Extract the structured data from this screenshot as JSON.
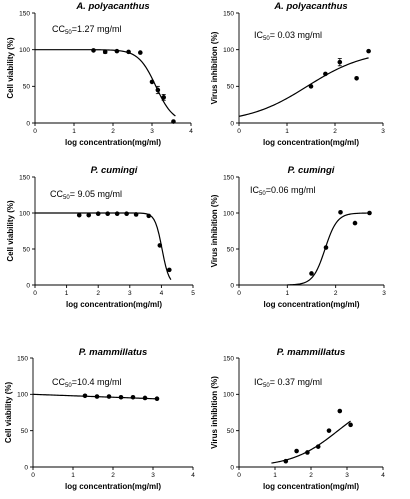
{
  "chart_data": [
    {
      "type": "scatter",
      "title": "A. polyacanthus",
      "annotation": {
        "prefix": "CC",
        "sub": "50",
        "text": "=1.27 mg/ml"
      },
      "xlabel": "log concentration(mg/ml)",
      "ylabel": "Cell viability (%)",
      "xlim": [
        0,
        4
      ],
      "ylim": [
        0,
        150
      ],
      "xticks": [
        "0",
        "1",
        "2",
        "3",
        "4"
      ],
      "yticks": [
        "0",
        "50",
        "100",
        "150"
      ],
      "x": [
        1.5,
        1.8,
        2.1,
        2.4,
        2.7,
        3.0,
        3.15,
        3.3,
        3.55
      ],
      "y": [
        99,
        97,
        98,
        97,
        96,
        56,
        45,
        35,
        2
      ],
      "errors": [
        0,
        2,
        0,
        0,
        0,
        0,
        5,
        4,
        0
      ],
      "fit": {
        "model": "sigmoid_decreasing",
        "top": 100,
        "bottom": 0,
        "mid": 3.1,
        "slope": 4.5,
        "x_from": 0,
        "x_to": 3.6
      }
    },
    {
      "type": "scatter",
      "title": "A. polyacanthus",
      "annotation": {
        "prefix": "IC",
        "sub": "50",
        "text": "= 0.03 mg/ml"
      },
      "xlabel": "log concentration(mg/ml)",
      "ylabel": "Virus inhibition (%)",
      "xlim": [
        0,
        3
      ],
      "ylim": [
        0,
        150
      ],
      "xticks": [
        "0",
        "1",
        "2",
        "3"
      ],
      "yticks": [
        "0",
        "50",
        "100",
        "150"
      ],
      "x": [
        1.5,
        1.8,
        2.1,
        2.45,
        2.7
      ],
      "y": [
        50,
        67,
        83,
        61,
        98
      ],
      "errors": [
        0,
        0,
        5,
        0,
        0
      ],
      "fit": {
        "model": "sigmoid_increasing",
        "top": 100,
        "bottom": 0,
        "mid": 1.42,
        "slope": 1.62,
        "x_from": 0,
        "x_to": 2.7
      }
    },
    {
      "type": "scatter",
      "title": "P. cumingi",
      "annotation": {
        "prefix": "CC",
        "sub": "50",
        "text": "= 9.05 mg/ml"
      },
      "xlabel": "log concentration(mg/ml)",
      "ylabel": "Cell viability (%)",
      "xlim": [
        0,
        5
      ],
      "ylim": [
        0,
        150
      ],
      "xticks": [
        "0",
        "1",
        "2",
        "3",
        "4",
        "5"
      ],
      "yticks": [
        "0",
        "50",
        "100",
        "150"
      ],
      "x": [
        1.4,
        1.7,
        2.0,
        2.3,
        2.6,
        2.9,
        3.2,
        3.6,
        3.95,
        4.25
      ],
      "y": [
        97,
        97,
        99,
        99,
        99,
        99,
        98,
        96,
        55,
        21
      ],
      "errors": [
        0,
        0,
        0,
        0,
        0,
        0,
        0,
        0,
        0,
        0
      ],
      "fit": {
        "model": "sigmoid_decreasing",
        "top": 100,
        "bottom": 0,
        "mid": 4.02,
        "slope": 9,
        "x_from": 0,
        "x_to": 4.3
      }
    },
    {
      "type": "scatter",
      "title": "P. cumingi",
      "annotation": {
        "prefix": "IC",
        "sub": "50",
        "text": "=0.06 mg/ml"
      },
      "xlabel": "log concentration(mg/ml)",
      "ylabel": "Virus inhibition (%)",
      "xlim": [
        0,
        3
      ],
      "ylim": [
        0,
        150
      ],
      "xticks": [
        "0",
        "1",
        "2",
        "3"
      ],
      "yticks": [
        "0",
        "50",
        "100",
        "150"
      ],
      "x": [
        1.5,
        1.8,
        2.1,
        2.4,
        2.7
      ],
      "y": [
        16,
        52,
        101,
        86,
        100
      ],
      "errors": [
        0,
        0,
        0,
        0,
        0
      ],
      "fit": {
        "model": "sigmoid_increasing",
        "top": 100,
        "bottom": 0,
        "mid": 1.78,
        "slope": 8,
        "x_from": 1.0,
        "x_to": 2.7
      }
    },
    {
      "type": "scatter",
      "title": "P. mammillatus",
      "annotation": {
        "prefix": "CC",
        "sub": "50",
        "text": "=10.4 mg/ml"
      },
      "xlabel": "log concentration(mg/ml)",
      "ylabel": "Cell viability (%)",
      "xlim": [
        0,
        4
      ],
      "ylim": [
        0,
        150
      ],
      "xticks": [
        "0",
        "1",
        "2",
        "3",
        "4"
      ],
      "yticks": [
        "0",
        "50",
        "100",
        "150"
      ],
      "x": [
        1.3,
        1.6,
        1.9,
        2.2,
        2.5,
        2.8,
        3.1
      ],
      "y": [
        98,
        97,
        97,
        96,
        96,
        95,
        94
      ],
      "errors": [
        0,
        0,
        0,
        0,
        0,
        0,
        0
      ],
      "fit": {
        "model": "linear",
        "y0": 100,
        "slope": -2,
        "x_from": 0,
        "x_to": 3.1
      }
    },
    {
      "type": "scatter",
      "title": "P. mammillatus",
      "annotation": {
        "prefix": "IC",
        "sub": "50",
        "text": "= 0.37 mg/ml"
      },
      "xlabel": "log concentration(mg/ml)",
      "ylabel": "Virus inhibition (%)",
      "xlim": [
        0,
        4
      ],
      "ylim": [
        0,
        150
      ],
      "xticks": [
        "0",
        "1",
        "2",
        "3",
        "4"
      ],
      "yticks": [
        "0",
        "50",
        "100",
        "150"
      ],
      "x": [
        1.3,
        1.6,
        1.9,
        2.2,
        2.5,
        2.8,
        3.1
      ],
      "y": [
        8,
        22,
        20,
        28,
        50,
        77,
        58
      ],
      "errors": [
        0,
        0,
        0,
        0,
        0,
        0,
        0
      ],
      "fit": {
        "model": "sigmoid_increasing",
        "top": 100,
        "bottom": 0,
        "mid": 2.75,
        "slope": 1.55,
        "x_from": 0.9,
        "x_to": 3.1
      }
    }
  ]
}
